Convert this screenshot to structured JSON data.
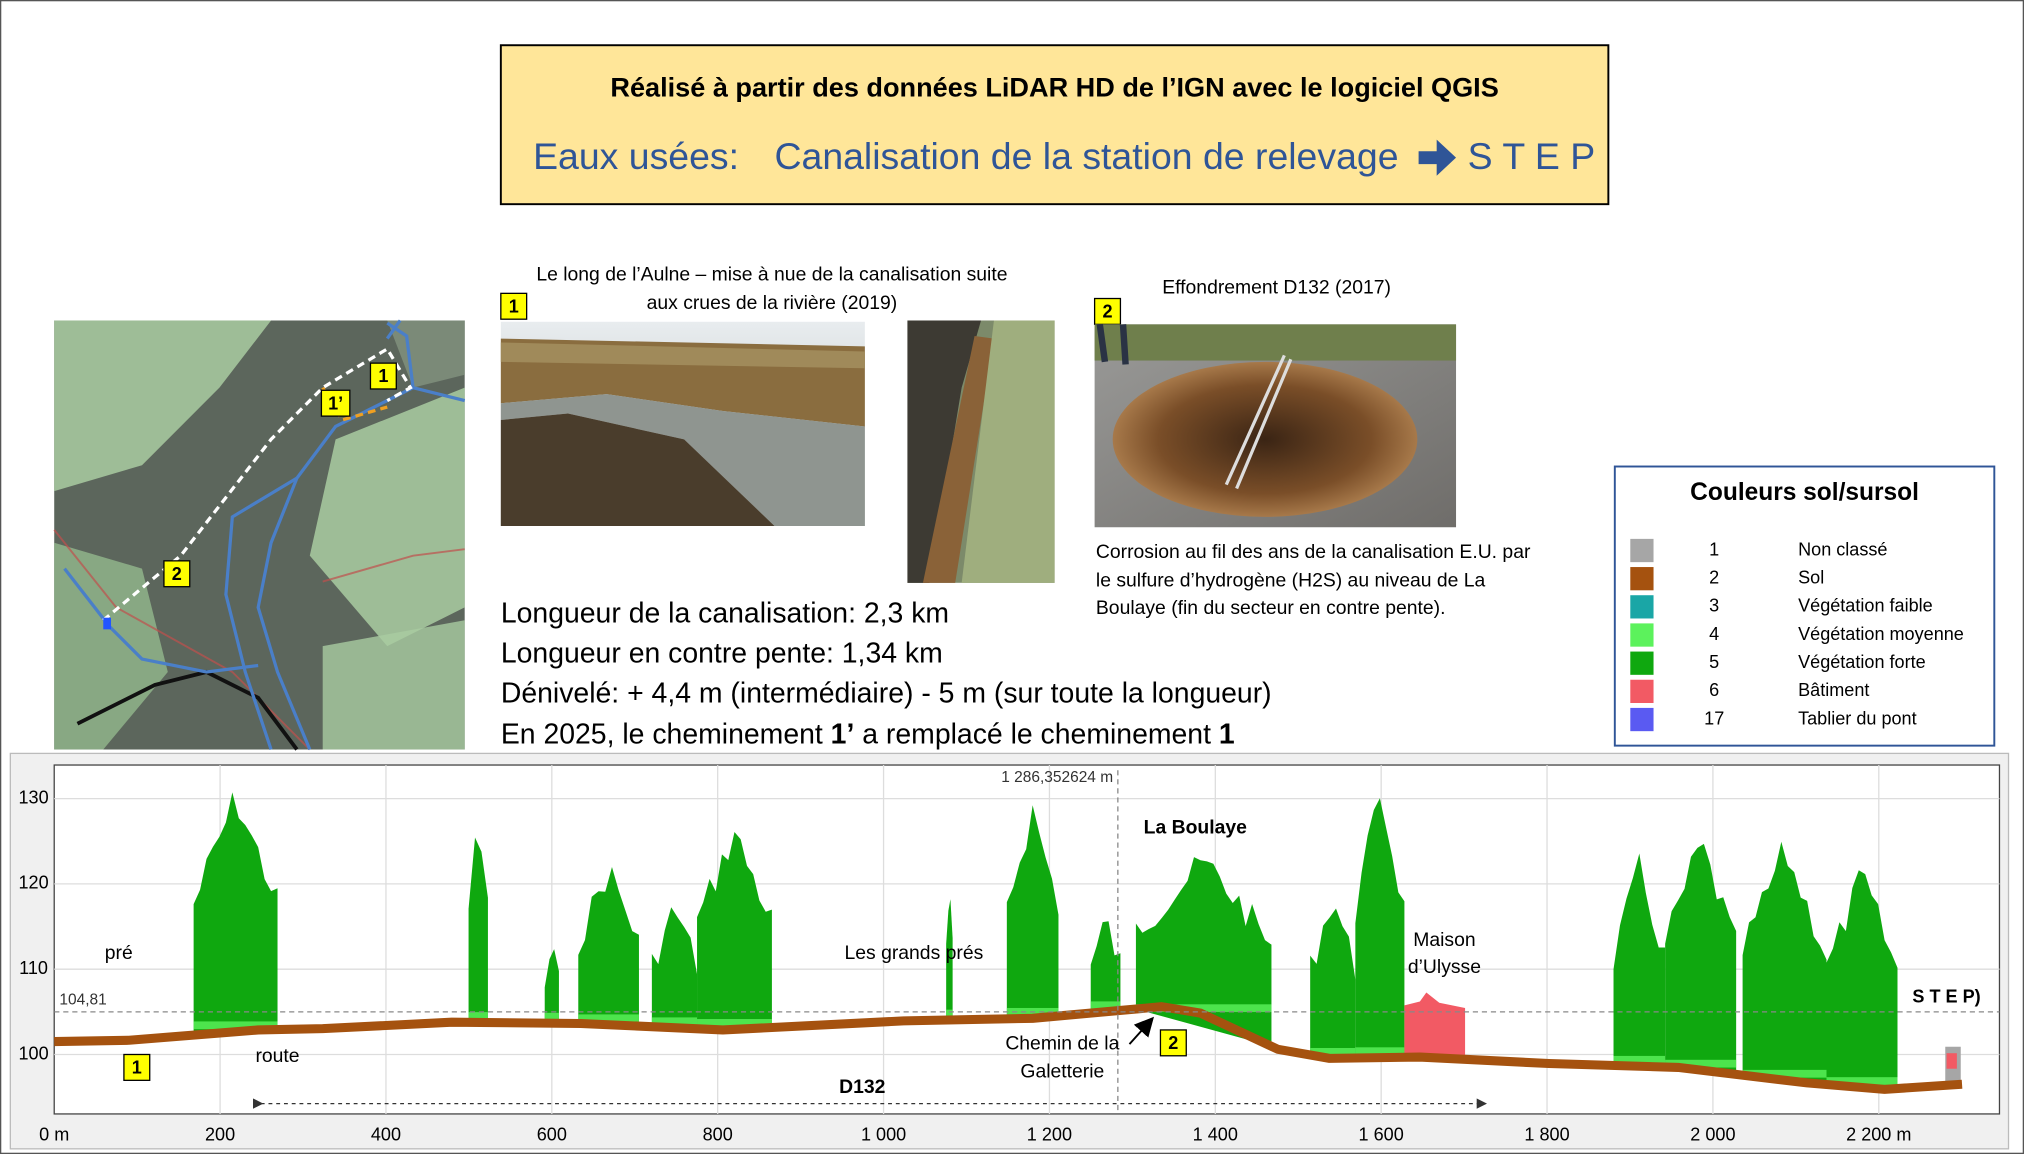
{
  "banner": {
    "line1": "Réalisé à partir des données LiDAR HD de l’IGN avec le logiciel QGIS",
    "label": "Eaux usées:",
    "subject": "Canalisation de la station de relevage",
    "target": "S T E P"
  },
  "map": {
    "markers": [
      "1",
      "1’",
      "2"
    ]
  },
  "photo1": {
    "badge": "1",
    "caption": [
      "Le long de l’Aulne – mise à nue de la canalisation suite",
      "aux crues de la rivière (2019)"
    ]
  },
  "photo2": {
    "badge": "2",
    "caption": "Effondrement D132 (2017)",
    "description": [
      "Corrosion au fil des ans de la canalisation E.U. par",
      "le sulfure d’hydrogène (H2S) au niveau de La",
      "Boulaye (fin du secteur en contre pente)."
    ]
  },
  "facts": {
    "lines": [
      "Longueur de la canalisation:  2,3 km",
      "Longueur en contre pente: 1,34 km",
      "Dénivelé:  + 4,4 m (intermédiaire)    - 5 m (sur toute la longueur)"
    ],
    "last": [
      "En 2025, le cheminement ",
      "1’",
      " a remplacé le cheminement ",
      "1"
    ]
  },
  "legend": {
    "title": "Couleurs sol/sursol",
    "items": [
      {
        "code": "1",
        "label": "Non classé",
        "color": "#a6a6a6"
      },
      {
        "code": "2",
        "label": "Sol",
        "color": "#a5520f"
      },
      {
        "code": "3",
        "label": "Végétation faible",
        "color": "#1aa6a6"
      },
      {
        "code": "4",
        "label": "Végétation moyenne",
        "color": "#5cf25c"
      },
      {
        "code": "5",
        "label": "Végétation forte",
        "color": "#0fa80f"
      },
      {
        "code": "6",
        "label": "Bâtiment",
        "color": "#f25a64"
      },
      {
        "code": "17",
        "label": "Tablier du pont",
        "color": "#5a5af2"
      }
    ]
  },
  "profile": {
    "yticks": [
      "100",
      "110",
      "120",
      "130"
    ],
    "xticks": [
      "0 m",
      "200",
      "400",
      "600",
      "800",
      "1 000",
      "1 200",
      "1 400",
      "1 600",
      "1 800",
      "2 000",
      "2 200 m"
    ],
    "reference_level": "104,81",
    "cursor": "1 286,352624 m",
    "labels": {
      "pre": "pré",
      "route": "route",
      "grands_pres": "Les grands prés",
      "boulaye": "La Boulaye",
      "maison": [
        "Maison",
        "d’Ulysse"
      ],
      "chemin": [
        "Chemin de la",
        "Galetterie"
      ],
      "road": "D132",
      "step": "S T E P)"
    },
    "badges": [
      "1",
      "2"
    ]
  }
}
